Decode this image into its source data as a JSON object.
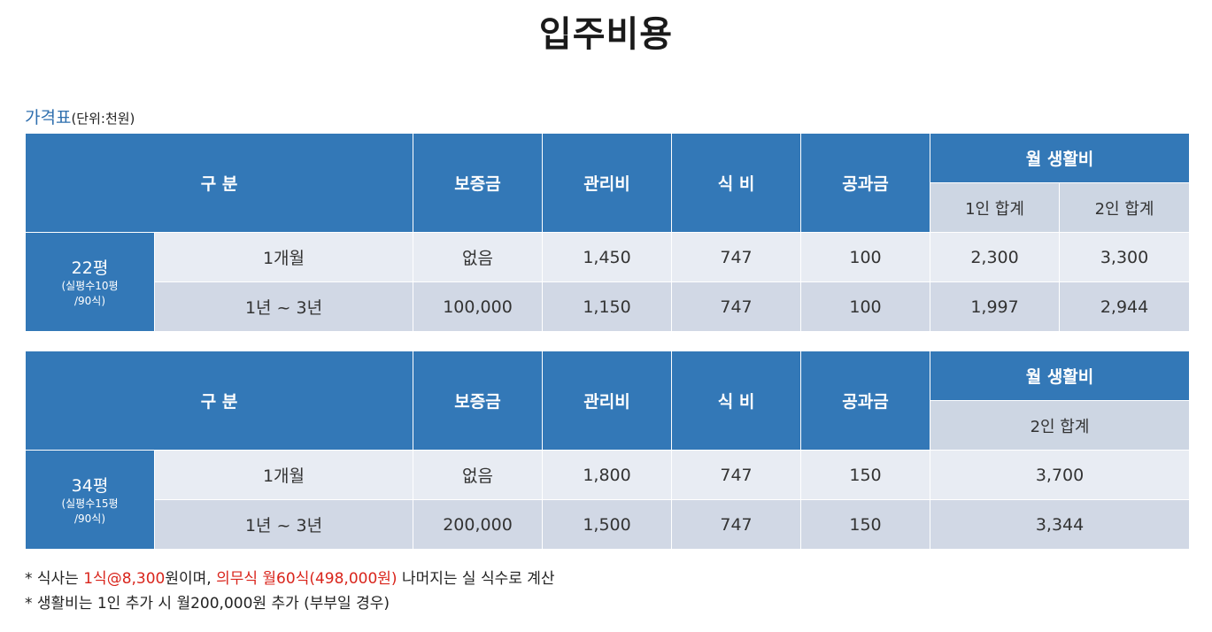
{
  "page_title": "입주비용",
  "caption": {
    "label": "가격표",
    "unit": "(단위:천원)"
  },
  "headers": {
    "category": "구 분",
    "deposit": "보증금",
    "management": "관리비",
    "meal": "식 비",
    "utilities": "공과금",
    "monthly_living": "월 생활비",
    "one_person_total": "1인 합계",
    "two_person_total": "2인 합계"
  },
  "table1": {
    "area": "22평",
    "area_note_1": "(실평수10평",
    "area_note_2": "/90식)",
    "rows": [
      {
        "period": "1개월",
        "deposit": "없음",
        "management": "1,450",
        "meal": "747",
        "utilities": "100",
        "one_total": "2,300",
        "two_total": "3,300"
      },
      {
        "period": "1년 ~ 3년",
        "deposit": "100,000",
        "management": "1,150",
        "meal": "747",
        "utilities": "100",
        "one_total": "1,997",
        "two_total": "2,944"
      }
    ]
  },
  "table2": {
    "area": "34평",
    "area_note_1": "(실평수15평",
    "area_note_2": "/90식)",
    "rows": [
      {
        "period": "1개월",
        "deposit": "없음",
        "management": "1,800",
        "meal": "747",
        "utilities": "150",
        "two_total": "3,700"
      },
      {
        "period": "1년 ~ 3년",
        "deposit": "200,000",
        "management": "1,500",
        "meal": "747",
        "utilities": "150",
        "two_total": "3,344"
      }
    ]
  },
  "notes": {
    "line1_prefix": "* 식사는 ",
    "line1_red1": "1식@8,300",
    "line1_mid": "원이며, ",
    "line1_red2": "의무식 월60식(498,000원)",
    "line1_suffix": " 나머지는 실 식수로 계산",
    "line2": "* 생활비는 1인 추가 시 월200,000원 추가 (부부일 경우)"
  },
  "colors": {
    "header_blue": "#3378b7",
    "row_light": "#e8ecf3",
    "row_dark": "#d1d8e5",
    "caption_blue": "#2f6fae",
    "note_red": "#d9251c"
  }
}
